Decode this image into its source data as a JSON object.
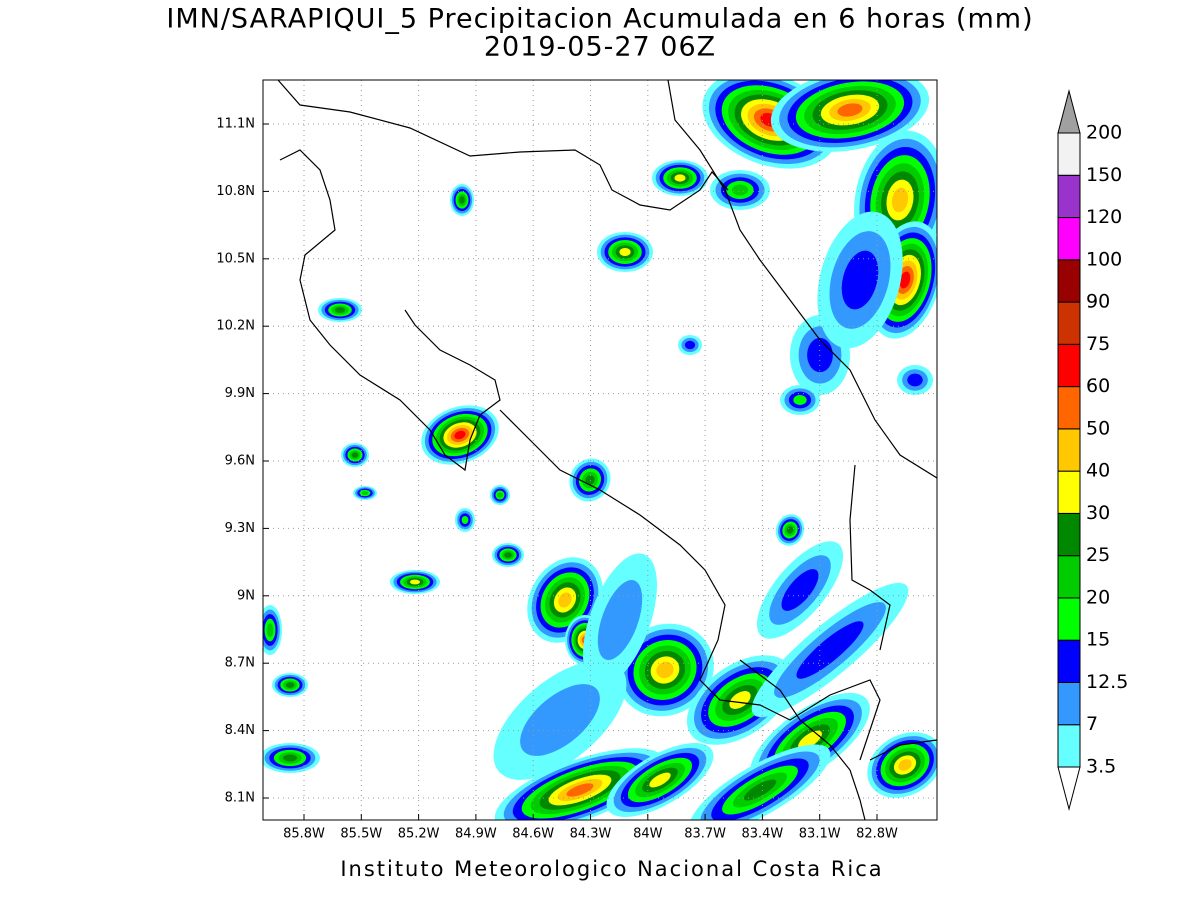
{
  "title": [
    "IMN/SARAPIQUI_5 Precipitacion Acumulada en 6 horas (mm)",
    "2019-05-27 06Z"
  ],
  "map": {
    "lat_ticks": [
      "11.1N",
      "10.8N",
      "10.5N",
      "10.2N",
      "9.9N",
      "9.6N",
      "9.3N",
      "9N",
      "8.7N",
      "8.4N",
      "8.1N"
    ],
    "lon_ticks": [
      "85.8W",
      "85.5W",
      "85.2W",
      "84.9W",
      "84.6W",
      "84.3W",
      "84W",
      "83.7W",
      "83.4W",
      "83.1W",
      "82.8W"
    ]
  },
  "colorbar": {
    "levels": [
      3.5,
      7,
      12.5,
      15,
      20,
      25,
      30,
      40,
      50,
      60,
      75,
      90,
      100,
      120,
      150,
      200
    ],
    "colors": [
      "#ffffff",
      "#66ffff",
      "#3399ff",
      "#0000ff",
      "#00ff00",
      "#00cc00",
      "#008800",
      "#ffff00",
      "#ffc800",
      "#ff6600",
      "#ff0000",
      "#cc3300",
      "#990000",
      "#ff00ff",
      "#9933cc",
      "#f2f2f2",
      "#a0a0a0"
    ]
  },
  "footer": "Instituto Meteorologico Nacional Costa Rica"
}
